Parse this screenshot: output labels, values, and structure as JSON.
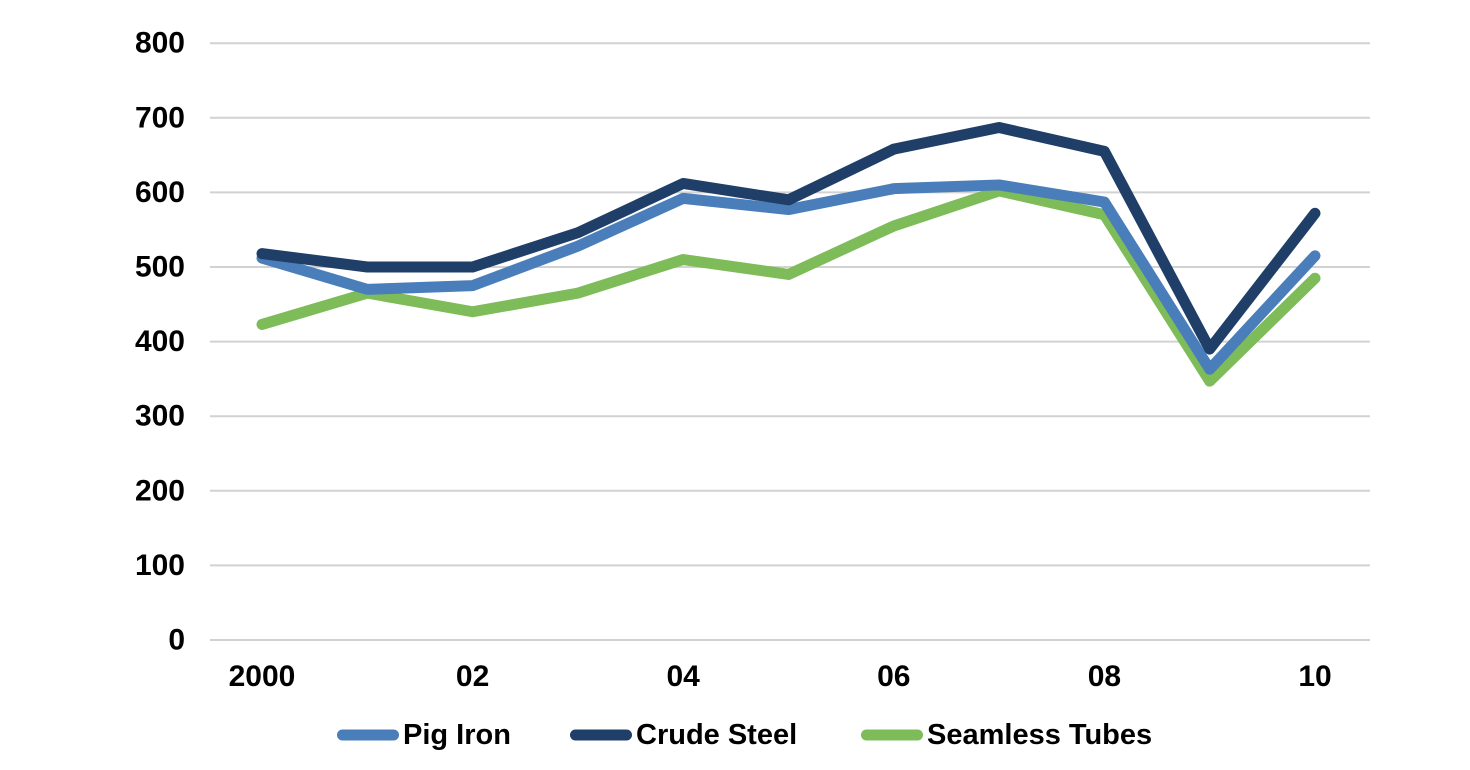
{
  "chart_data": {
    "type": "line",
    "x": [
      2000,
      2001,
      2002,
      2003,
      2004,
      2005,
      2006,
      2007,
      2008,
      2009,
      2010
    ],
    "xtick_indices": [
      0,
      2,
      4,
      6,
      8,
      10
    ],
    "xtick_labels": [
      "2000",
      "02",
      "04",
      "06",
      "08",
      "10"
    ],
    "yticks": [
      0,
      100,
      200,
      300,
      400,
      500,
      600,
      700,
      800
    ],
    "ylim": [
      0,
      800
    ],
    "grid": "horizontal",
    "gridline_color": "#D2D2D2",
    "legend_position": "bottom",
    "series": [
      {
        "name": "Pig Iron",
        "color": "#4A7EBB",
        "values": [
          512,
          470,
          475,
          528,
          592,
          577,
          605,
          610,
          587,
          363,
          515
        ]
      },
      {
        "name": "Crude Steel",
        "color": "#1F3F68",
        "values": [
          518,
          500,
          500,
          546,
          612,
          590,
          658,
          687,
          655,
          390,
          572
        ]
      },
      {
        "name": "Seamless Tubes",
        "color": "#7EBB59",
        "values": [
          423,
          465,
          440,
          465,
          510,
          490,
          555,
          602,
          570,
          347,
          485
        ]
      }
    ]
  }
}
